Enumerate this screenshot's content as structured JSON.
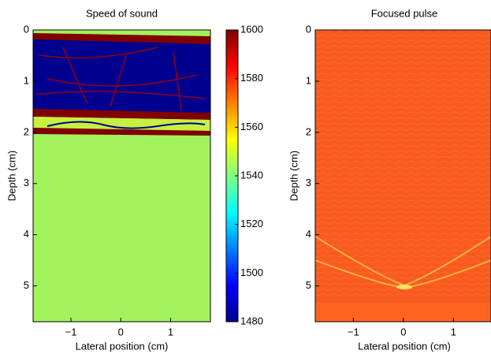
{
  "chart_data": [
    {
      "type": "heatmap",
      "title": "Speed of sound",
      "x_label": "Lateral position (cm)",
      "y_label": "Depth (cm)",
      "xlim": [
        -1.76,
        1.8
      ],
      "ylim": [
        0,
        5.7
      ],
      "xticks": [
        {
          "value": -1,
          "label": "−1"
        },
        0,
        1
      ],
      "yticks": [
        0,
        1,
        2,
        3,
        4,
        5
      ],
      "colorbar": {
        "lim": [
          1480,
          1600
        ],
        "ticks": [
          1480,
          1500,
          1520,
          1540,
          1560,
          1580,
          1600
        ]
      }
    },
    {
      "type": "heatmap",
      "title": "Focused pulse",
      "x_label": "Lateral position (cm)",
      "y_label": "Depth (cm)",
      "xlim": [
        -1.76,
        1.75
      ],
      "ylim": [
        0,
        5.7
      ],
      "xticks": [
        {
          "value": -1,
          "label": "−1"
        },
        0,
        1
      ],
      "yticks": [
        0,
        1,
        2,
        3,
        4,
        5
      ]
    }
  ]
}
